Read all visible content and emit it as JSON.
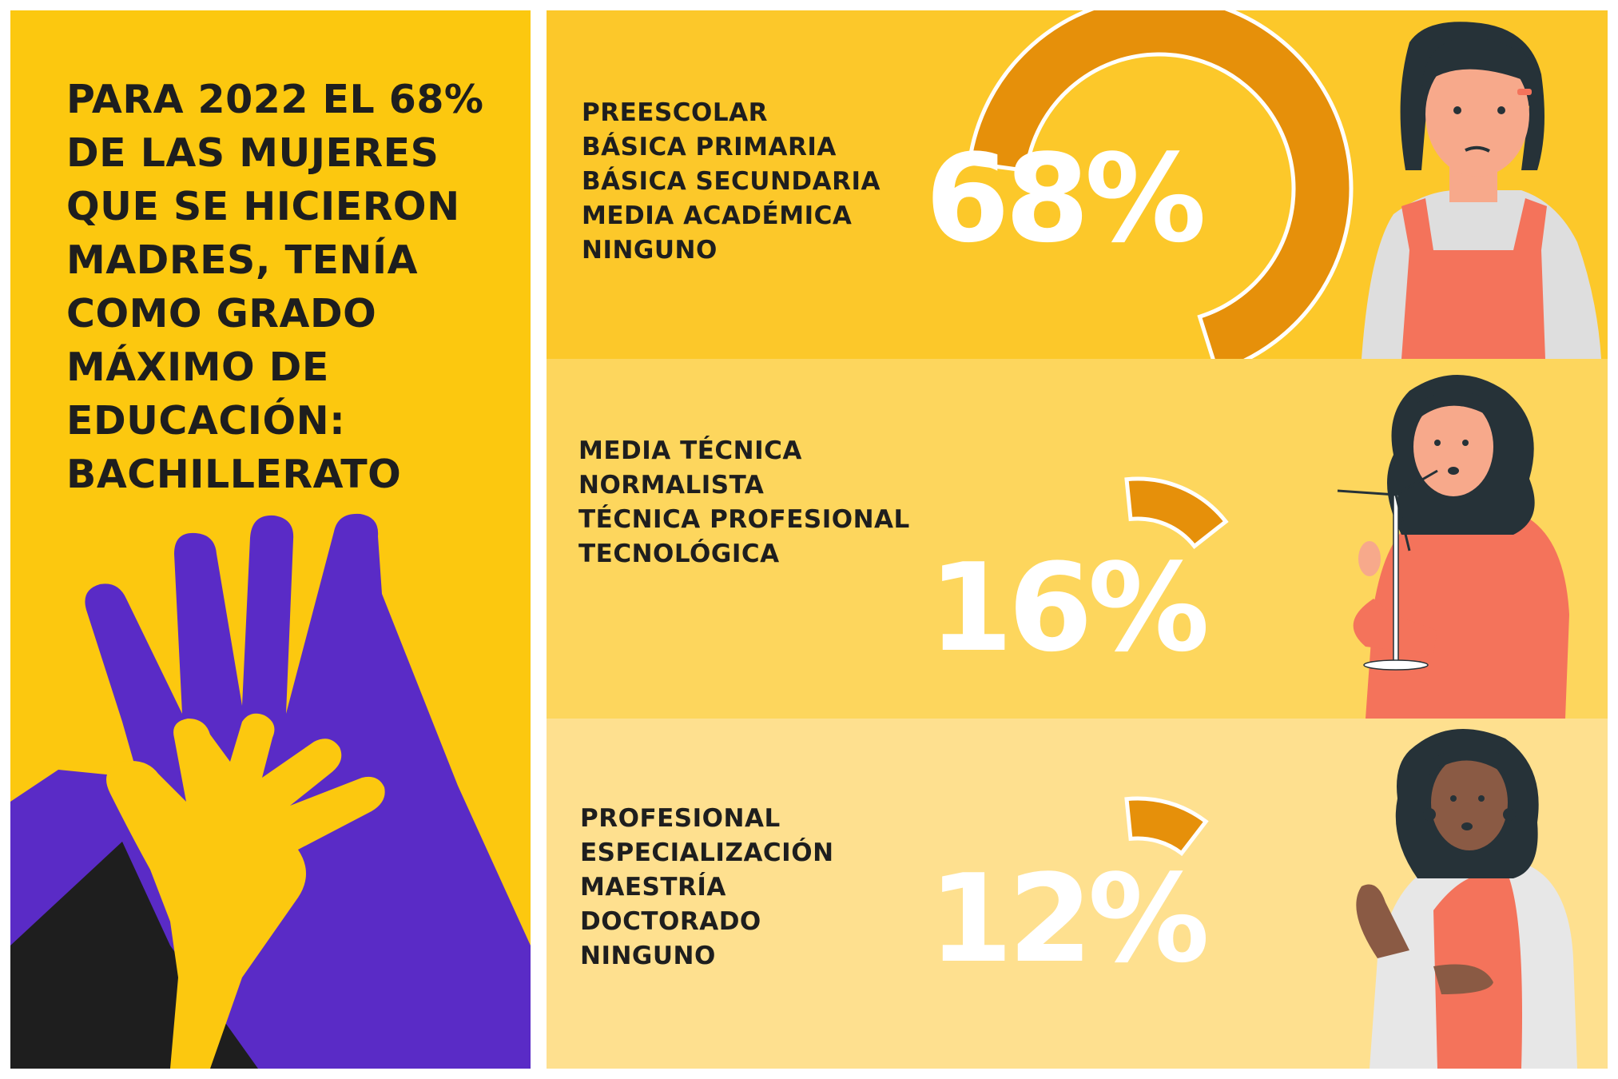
{
  "headline": {
    "lines": [
      "PARA 2022 EL 68%",
      "DE LAS MUJERES",
      "QUE SE HICIERON",
      "MADRES, TENÍA",
      "COMO GRADO",
      "MÁXIMO DE",
      "EDUCACIÓN:",
      "BACHILLERATO"
    ]
  },
  "colors": {
    "panel_yellow": "#fcc80f",
    "band_1": "#fcc82a",
    "band_2": "#fdd65d",
    "band_3": "#fee08f",
    "ring_orange": "#e6900a",
    "hand_purple": "#5a2bc6",
    "text_dark": "#1e1e1e",
    "percent_white": "#ffffff"
  },
  "chart_data": {
    "type": "pie",
    "categories": [
      "68%",
      "16%",
      "12%"
    ],
    "values": [
      68,
      16,
      12
    ],
    "groups": [
      {
        "percent_label": "68%",
        "value": 68,
        "levels": [
          "PREESCOLAR",
          "BÁSICA PRIMARIA",
          "BÁSICA SECUNDARIA",
          "MEDIA ACADÉMICA",
          "NINGUNO"
        ]
      },
      {
        "percent_label": "16%",
        "value": 16,
        "levels": [
          "MEDIA TÉCNICA",
          "NORMALISTA",
          "TÉCNICA PROFESIONAL",
          "TECNOLÓGICA"
        ]
      },
      {
        "percent_label": "12%",
        "value": 12,
        "levels": [
          "PROFESIONAL",
          "ESPECIALIZACIÓN",
          "MAESTRÍA",
          "DOCTORADO",
          "NINGUNO"
        ]
      }
    ]
  },
  "icons": {
    "left_art": "hands-icon",
    "band_1_person": "woman-overalls-illustration",
    "band_2_person": "woman-wind-turbine-illustration",
    "band_3_person": "woman-lab-coat-illustration"
  }
}
